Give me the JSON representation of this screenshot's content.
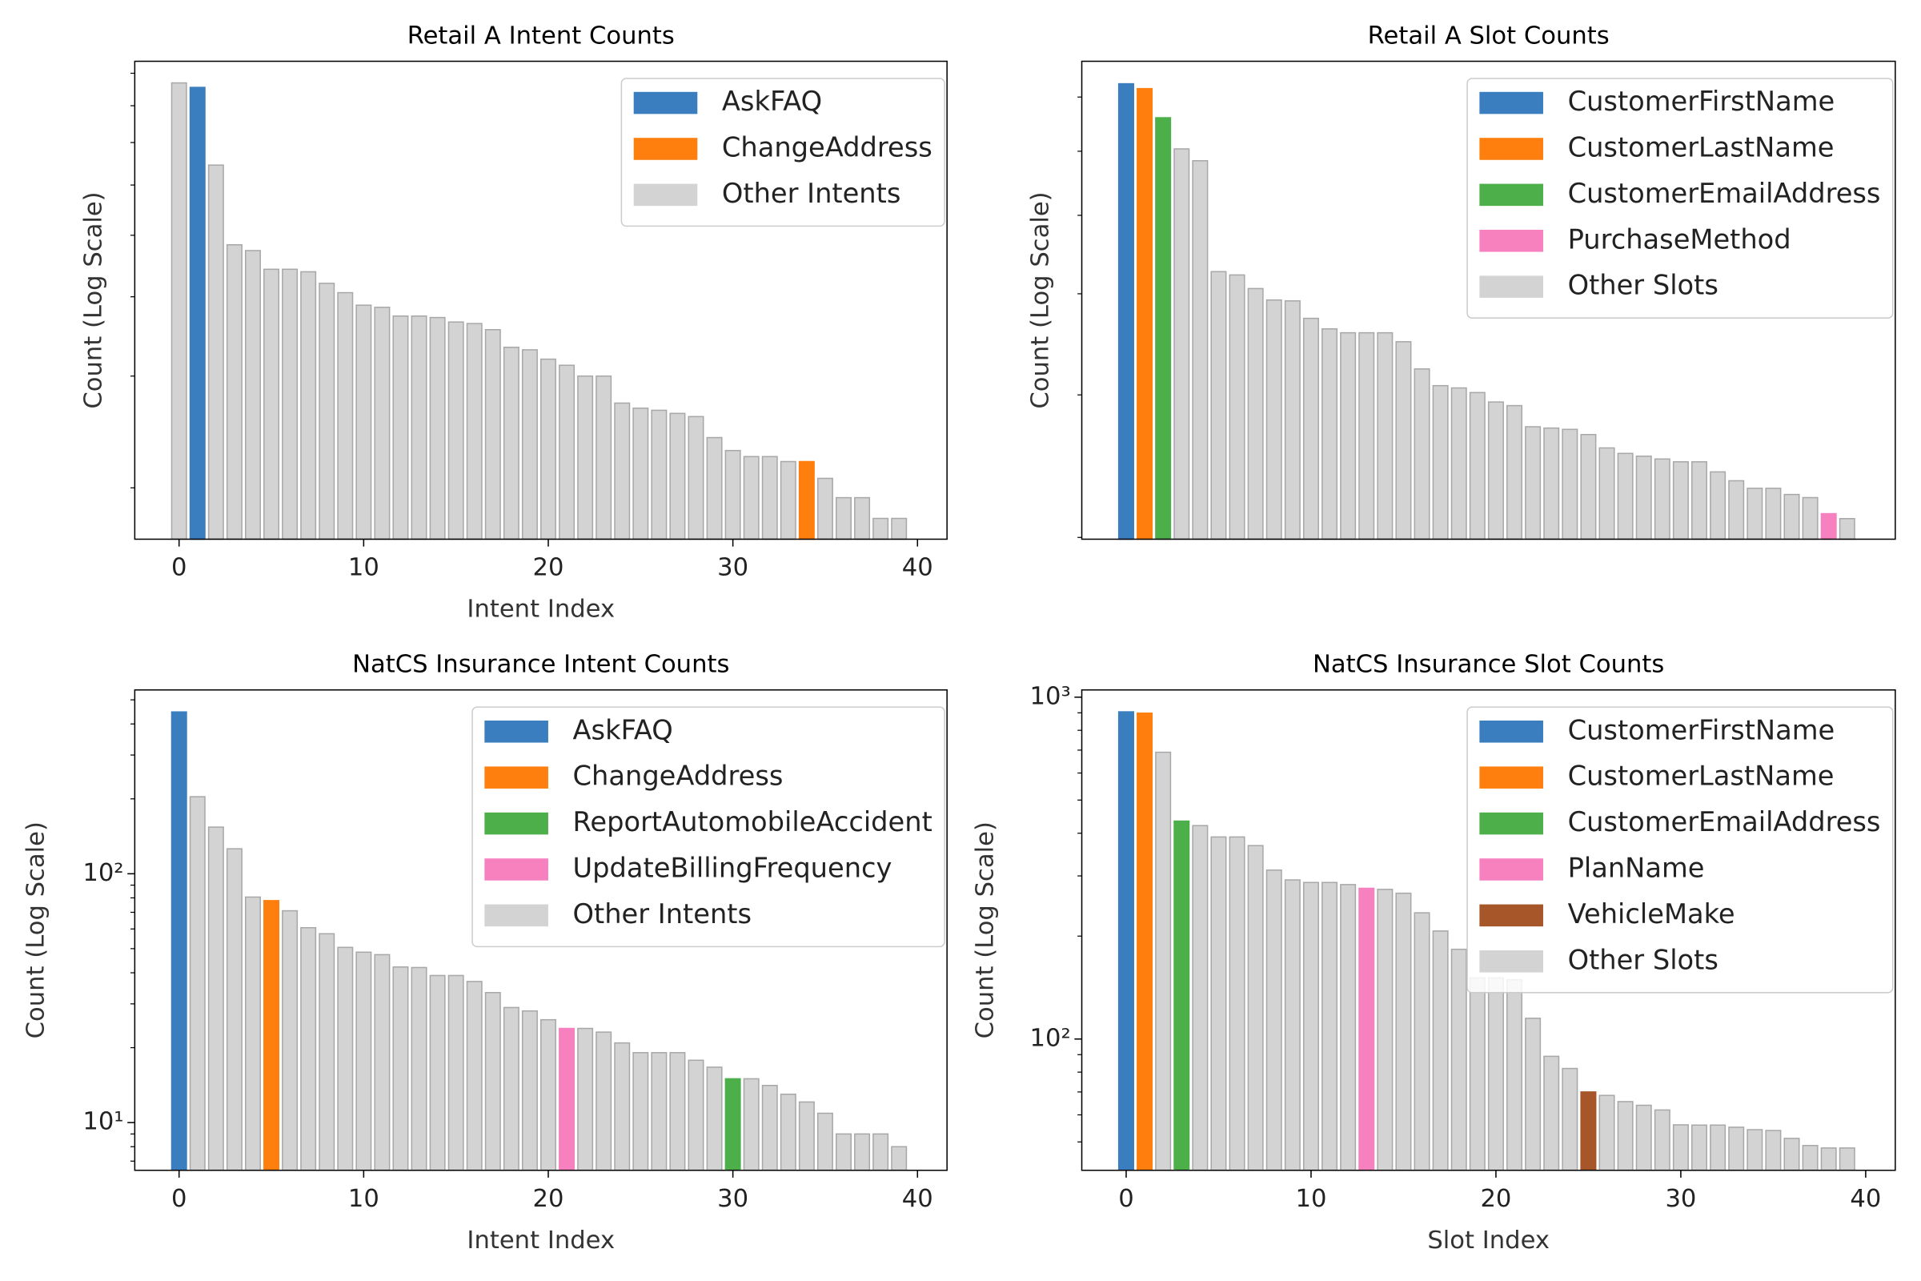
{
  "chart_data": [
    {
      "type": "bar",
      "title": "Retail A Intent Counts",
      "xlabel": "Intent Index",
      "ylabel": "Count (Log Scale)",
      "log_scale": true,
      "x": [
        0,
        1,
        2,
        3,
        4,
        5,
        6,
        7,
        8,
        9,
        10,
        11,
        12,
        13,
        14,
        15,
        16,
        17,
        18,
        19,
        20,
        21,
        22,
        23,
        24,
        25,
        26,
        27,
        28,
        29,
        30,
        31,
        32,
        33,
        34,
        35,
        36,
        37,
        38,
        39
      ],
      "values": [
        86.9,
        85.5,
        64.5,
        48.3,
        47.3,
        44.2,
        44.2,
        43.8,
        42,
        40.6,
        38.8,
        38.5,
        37.3,
        37.3,
        37.1,
        36.5,
        36.3,
        35.5,
        33.3,
        33,
        31.9,
        31.2,
        30,
        30,
        27.2,
        26.7,
        26.5,
        26.2,
        25.9,
        24,
        22.9,
        22.4,
        22.4,
        22,
        22,
        20.7,
        19.3,
        19.3,
        17.9,
        17.9
      ],
      "xlim": [
        -2.4,
        41.6
      ],
      "xticks": [
        0,
        10,
        20,
        30,
        40
      ],
      "ylim": [
        16.6,
        94
      ],
      "highlights": [
        {
          "name": "AskFAQ",
          "color": "#3a7ebf",
          "index": 1
        },
        {
          "name": "ChangeAddress",
          "color": "#ff7f0e",
          "index": 34
        }
      ],
      "other": {
        "name": "Other Intents",
        "color": "#d3d3d3"
      },
      "legend": "upper right"
    },
    {
      "type": "bar",
      "title": "Retail A Slot Counts",
      "ylabel": "Count (Log Scale)",
      "log_scale": true,
      "x": [
        0,
        1,
        2,
        3,
        4,
        5,
        6,
        7,
        8,
        9,
        10,
        11,
        12,
        13,
        14,
        15,
        16,
        17,
        18,
        19,
        20,
        21,
        22,
        23,
        24,
        25,
        26,
        27,
        28,
        29,
        30,
        31,
        32,
        33,
        34,
        35,
        36,
        37,
        38,
        39
      ],
      "values": [
        72.7,
        71.7,
        66,
        60.4,
        58.4,
        42.6,
        42.2,
        40.6,
        39.3,
        39.2,
        37.3,
        36.2,
        35.8,
        35.8,
        35.8,
        34.9,
        32.3,
        30.8,
        30.6,
        30.2,
        29.4,
        29.1,
        27.4,
        27.3,
        27.2,
        26.8,
        25.8,
        25.4,
        25.2,
        25,
        24.8,
        24.8,
        24.1,
        23.5,
        23,
        23,
        22.6,
        22.4,
        21.4,
        21.1
      ],
      "xlim": [
        -2.4,
        41.6
      ],
      "ylim": [
        19.9,
        77.5
      ],
      "highlights": [
        {
          "name": "CustomerFirstName",
          "color": "#3a7ebf",
          "index": 0
        },
        {
          "name": "CustomerLastName",
          "color": "#ff7f0e",
          "index": 1
        },
        {
          "name": "CustomerEmailAddress",
          "color": "#4daf4a",
          "index": 2
        },
        {
          "name": "PurchaseMethod",
          "color": "#f781bf",
          "index": 38
        }
      ],
      "other": {
        "name": "Other Slots",
        "color": "#d3d3d3"
      },
      "legend": "upper right"
    },
    {
      "type": "bar",
      "title": "NatCS Insurance Intent Counts",
      "xlabel": "Intent Index",
      "ylabel": "Count (Log Scale)",
      "log_scale": true,
      "x": [
        0,
        1,
        2,
        3,
        4,
        5,
        6,
        7,
        8,
        9,
        10,
        11,
        12,
        13,
        14,
        15,
        16,
        17,
        18,
        19,
        20,
        21,
        22,
        23,
        24,
        25,
        26,
        27,
        28,
        29,
        30,
        31,
        32,
        33,
        34,
        35,
        36,
        37,
        38,
        39
      ],
      "values": [
        447,
        204,
        154,
        126,
        80.6,
        78,
        71,
        60.7,
        57.4,
        50.6,
        48.4,
        47.3,
        42.2,
        42,
        39,
        39,
        36.9,
        33.3,
        29,
        28.1,
        25.9,
        23.9,
        23.9,
        23.1,
        20.9,
        19.1,
        19.1,
        19.1,
        17.8,
        16.7,
        15,
        15,
        14.1,
        13,
        12.1,
        10.9,
        9,
        9,
        9,
        8
      ],
      "xlim": [
        -2.4,
        41.6
      ],
      "xticks": [
        0,
        10,
        20,
        30,
        40
      ],
      "ylim": [
        6.43,
        548
      ],
      "yticks": [
        {
          "value": 10,
          "label": "10¹"
        },
        {
          "value": 100,
          "label": "10²"
        }
      ],
      "highlights": [
        {
          "name": "AskFAQ",
          "color": "#3a7ebf",
          "index": 0
        },
        {
          "name": "ChangeAddress",
          "color": "#ff7f0e",
          "index": 5
        },
        {
          "name": "ReportAutomobileAccident",
          "color": "#4daf4a",
          "index": 30
        },
        {
          "name": "UpdateBillingFrequency",
          "color": "#f781bf",
          "index": 21
        }
      ],
      "other": {
        "name": "Other Intents",
        "color": "#d3d3d3"
      },
      "legend": "upper right"
    },
    {
      "type": "bar",
      "title": "NatCS Insurance Slot Counts",
      "xlabel": "Slot Index",
      "ylabel": "Count (Log Scale)",
      "log_scale": true,
      "x": [
        0,
        1,
        2,
        3,
        4,
        5,
        6,
        7,
        8,
        9,
        10,
        11,
        12,
        13,
        14,
        15,
        16,
        17,
        18,
        19,
        20,
        21,
        22,
        23,
        24,
        25,
        26,
        27,
        28,
        29,
        30,
        31,
        32,
        33,
        34,
        35,
        36,
        37,
        38,
        39
      ],
      "values": [
        906,
        898,
        690,
        434,
        421,
        390,
        390,
        368,
        312,
        292,
        287,
        287,
        283,
        276,
        274,
        267,
        234,
        207,
        183,
        151,
        151,
        149,
        115,
        89,
        82,
        70,
        68.4,
        65.6,
        64,
        62,
        56.1,
        56,
        56,
        55.2,
        54.3,
        54,
        51.2,
        48.8,
        48,
        48
      ],
      "xlim": [
        -2.4,
        41.6
      ],
      "xticks": [
        0,
        10,
        20,
        30,
        40
      ],
      "ylim": [
        41.3,
        1050
      ],
      "yticks": [
        {
          "value": 100,
          "label": "10²"
        },
        {
          "value": 1000,
          "label": "10³"
        }
      ],
      "highlights": [
        {
          "name": "CustomerFirstName",
          "color": "#3a7ebf",
          "index": 0
        },
        {
          "name": "CustomerLastName",
          "color": "#ff7f0e",
          "index": 1
        },
        {
          "name": "CustomerEmailAddress",
          "color": "#4daf4a",
          "index": 3
        },
        {
          "name": "PlanName",
          "color": "#f781bf",
          "index": 13
        },
        {
          "name": "VehicleMake",
          "color": "#a65628",
          "index": 25
        }
      ],
      "other": {
        "name": "Other Slots",
        "color": "#d3d3d3"
      },
      "legend": "upper right"
    }
  ]
}
